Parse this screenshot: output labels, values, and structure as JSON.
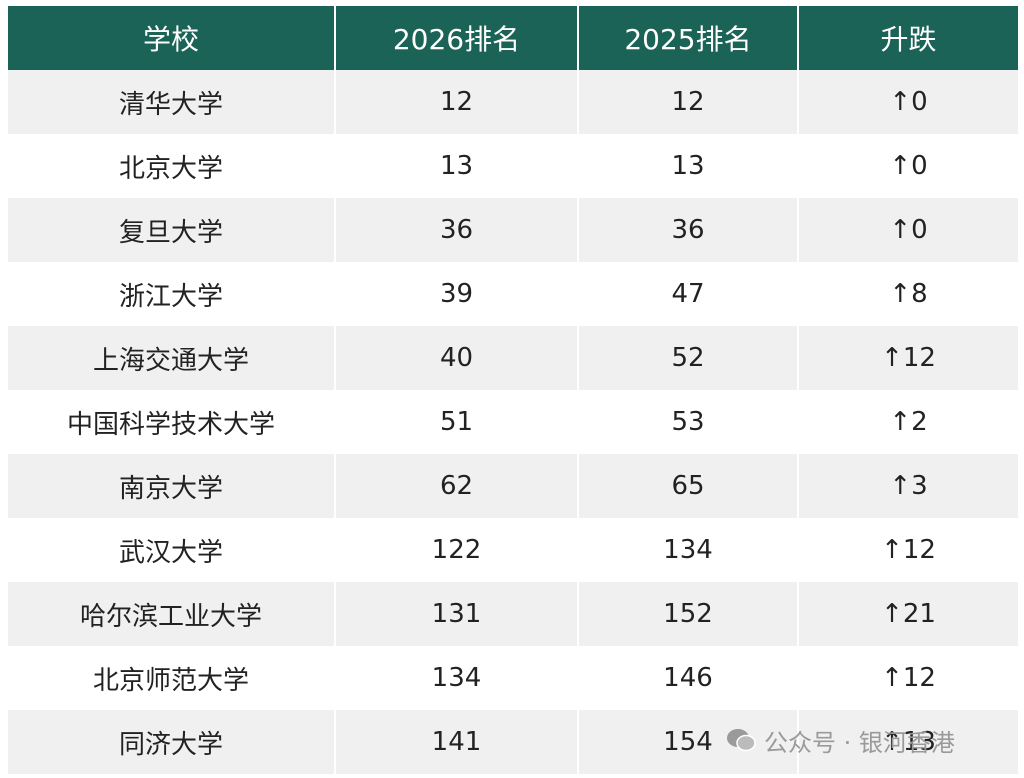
{
  "table": {
    "header": [
      "学校",
      "2026排名",
      "2025排名",
      "升跌"
    ],
    "rows": [
      [
        "清华大学",
        "12",
        "12",
        "↑0"
      ],
      [
        "北京大学",
        "13",
        "13",
        "↑0"
      ],
      [
        "复旦大学",
        "36",
        "36",
        "↑0"
      ],
      [
        "浙江大学",
        "39",
        "47",
        "↑8"
      ],
      [
        "上海交通大学",
        "40",
        "52",
        "↑12"
      ],
      [
        "中国科学技术大学",
        "51",
        "53",
        "↑2"
      ],
      [
        "南京大学",
        "62",
        "65",
        "↑3"
      ],
      [
        "武汉大学",
        "122",
        "134",
        "↑12"
      ],
      [
        "哈尔滨工业大学",
        "131",
        "152",
        "↑21"
      ],
      [
        "北京师范大学",
        "134",
        "146",
        "↑12"
      ],
      [
        "同济大学",
        "141",
        "154",
        "↑13"
      ]
    ]
  },
  "watermark": "公众号 · 银河香港"
}
